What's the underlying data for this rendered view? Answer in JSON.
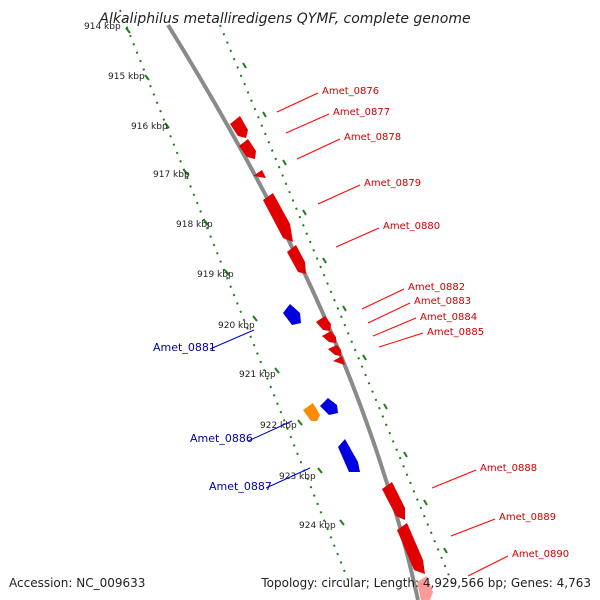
{
  "title": "Alkaliphilus metalliredigens QYMF, complete genome",
  "footer": {
    "accession": "Accession: NC_009633",
    "topology": "Topology: circular; Length: 4,929,566 bp; Genes: 4,763"
  },
  "colors": {
    "forward_gene": "#ff0000",
    "reverse_gene": "#0000ff",
    "other_gene": "#ff8c00",
    "backbone": "#808080",
    "ticks": "#1a7f1a",
    "forward_label": "#cc0000",
    "reverse_label": "#0000aa"
  },
  "kbp_ticks": [
    "914 kbp",
    "915 kbp",
    "916 kbp",
    "917 kbp",
    "918 kbp",
    "919 kbp",
    "920 kbp",
    "921 kbp",
    "922 kbp",
    "923 kbp",
    "924 kbp"
  ],
  "forward_genes": [
    "Amet_0876",
    "Amet_0877",
    "Amet_0878",
    "Amet_0879",
    "Amet_0880",
    "Amet_0882",
    "Amet_0883",
    "Amet_0884",
    "Amet_0885",
    "Amet_0888",
    "Amet_0889",
    "Amet_0890"
  ],
  "reverse_genes": [
    "Amet_0881",
    "Amet_0886",
    "Amet_0887"
  ]
}
